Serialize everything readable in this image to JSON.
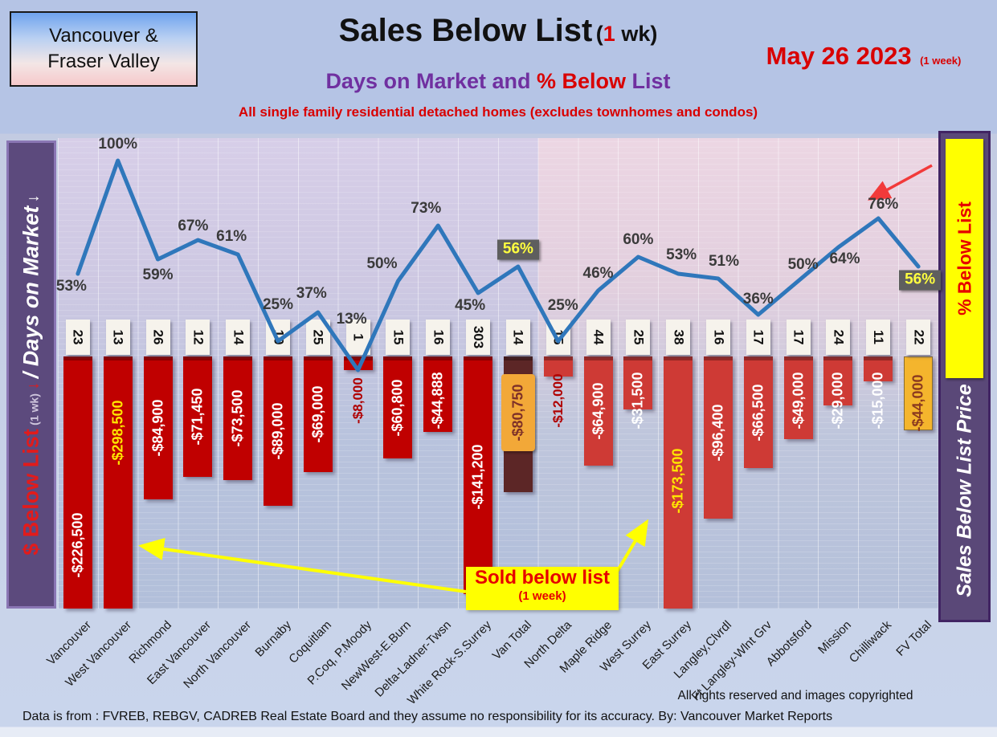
{
  "header": {
    "region_line1": "Vancouver &",
    "region_line2": "Fraser Valley",
    "title": "Sales Below List",
    "title_paren_open": "(",
    "title_one": "1",
    "title_wk": " wk)",
    "date": "May 26  2023",
    "date_note": "(1 week)",
    "subtitle_left": "Days on Market and ",
    "subtitle_red": "% Below ",
    "subtitle_tail": "List",
    "tagline": "All single family residential detached homes (excludes townhomes and condos)"
  },
  "left_axis": {
    "dollar": "$ Below List",
    "wk": "(1 wk)",
    "slash_days": "/ Days on Market"
  },
  "right_axis": {
    "pct_badge": "% Below List",
    "label": "Sales Below List Price"
  },
  "callout": {
    "line1": "Sold below list",
    "line2": "(1 week)"
  },
  "footer": {
    "rights": "All rights reserved and  images copyrighted",
    "source": "Data is from : FVREB, REBGV, CADREB Real Estate Board and they assume no responsibility for its accuracy. By: Vancouver Market Reports"
  },
  "chart_data": {
    "type": "line+bar combo",
    "categories": [
      "Vancouver",
      "West Vancouver",
      "Richmond",
      "East Vancouver",
      "North Vancouver",
      "Burnaby",
      "Coquitlam",
      "P.Coq, P.Moody",
      "NewWest-E.Burn",
      "Delta-Ladner-Twsn",
      "White Rock-S.Surrey",
      "Van Total",
      "North Delta",
      "Maple Ridge",
      "West Surrey",
      "East Surrey",
      "Langley,Clvrdl",
      "Ft Langley-Wlnt Grv",
      "Abbotsford",
      "Mission",
      "Chilliwack",
      "FV Total"
    ],
    "series": [
      {
        "name": "% Below List",
        "type": "line",
        "values": [
          53,
          100,
          59,
          67,
          61,
          25,
          37,
          13,
          50,
          73,
          45,
          56,
          25,
          46,
          60,
          53,
          51,
          36,
          50,
          64,
          76,
          56
        ]
      },
      {
        "name": "Days on Market",
        "type": "label-boxes",
        "values": [
          23,
          13,
          26,
          12,
          14,
          10,
          25,
          1,
          15,
          16,
          303,
          14,
          15,
          44,
          25,
          38,
          16,
          17,
          17,
          24,
          11,
          22
        ]
      },
      {
        "name": "$ Below List",
        "type": "bar",
        "values": [
          -226500,
          -298500,
          -84900,
          -71450,
          -73500,
          -89000,
          -69000,
          -8000,
          -60800,
          -44888,
          -141200,
          -80750,
          -12000,
          -64900,
          -31500,
          -173500,
          -96400,
          -66500,
          -49000,
          -29000,
          -15000,
          -44000
        ],
        "labels": [
          "-$226,500",
          "-$298,500",
          "-$84,900",
          "-$71,450",
          "-$73,500",
          "-$89,000",
          "-$69,000",
          "-$8,000",
          "-$60,800",
          "-$44,888",
          "-$141,200",
          "-$80,750",
          "-$12,000",
          "-$64,900",
          "-$31,500",
          "-$173,500",
          "-$96,400",
          "-$66,500",
          "-$49,000",
          "-$29,000",
          "-$15,000",
          "-$44,000"
        ]
      }
    ],
    "pct_axis": {
      "min": 0,
      "max": 100
    },
    "bar_axis": {
      "unit": "USD below list",
      "clip_at": -150000
    },
    "highlighted_totals": [
      "Van Total",
      "FV Total"
    ],
    "grid": true,
    "legend_position": "none",
    "colors": {
      "line": "#2f77bb",
      "bar_left_region": "#c00000",
      "bar_right_region": "#ce3a35",
      "bar_van_total": "#5c2626",
      "van_total_tag": "#f2a838",
      "bar_fv_total": "#f4b52d",
      "pct_label": "#3a3a3a",
      "pct_highlight_bg": "#5e5e5e",
      "pct_highlight_text": "#ffff3f",
      "bar_label_default": "#ffffff",
      "bar_label_max": "#ffe600",
      "bar_label_small_outside": "#b00000",
      "van_total_text": "#7e3128",
      "fv_total_text": "#8b3a1f"
    }
  }
}
